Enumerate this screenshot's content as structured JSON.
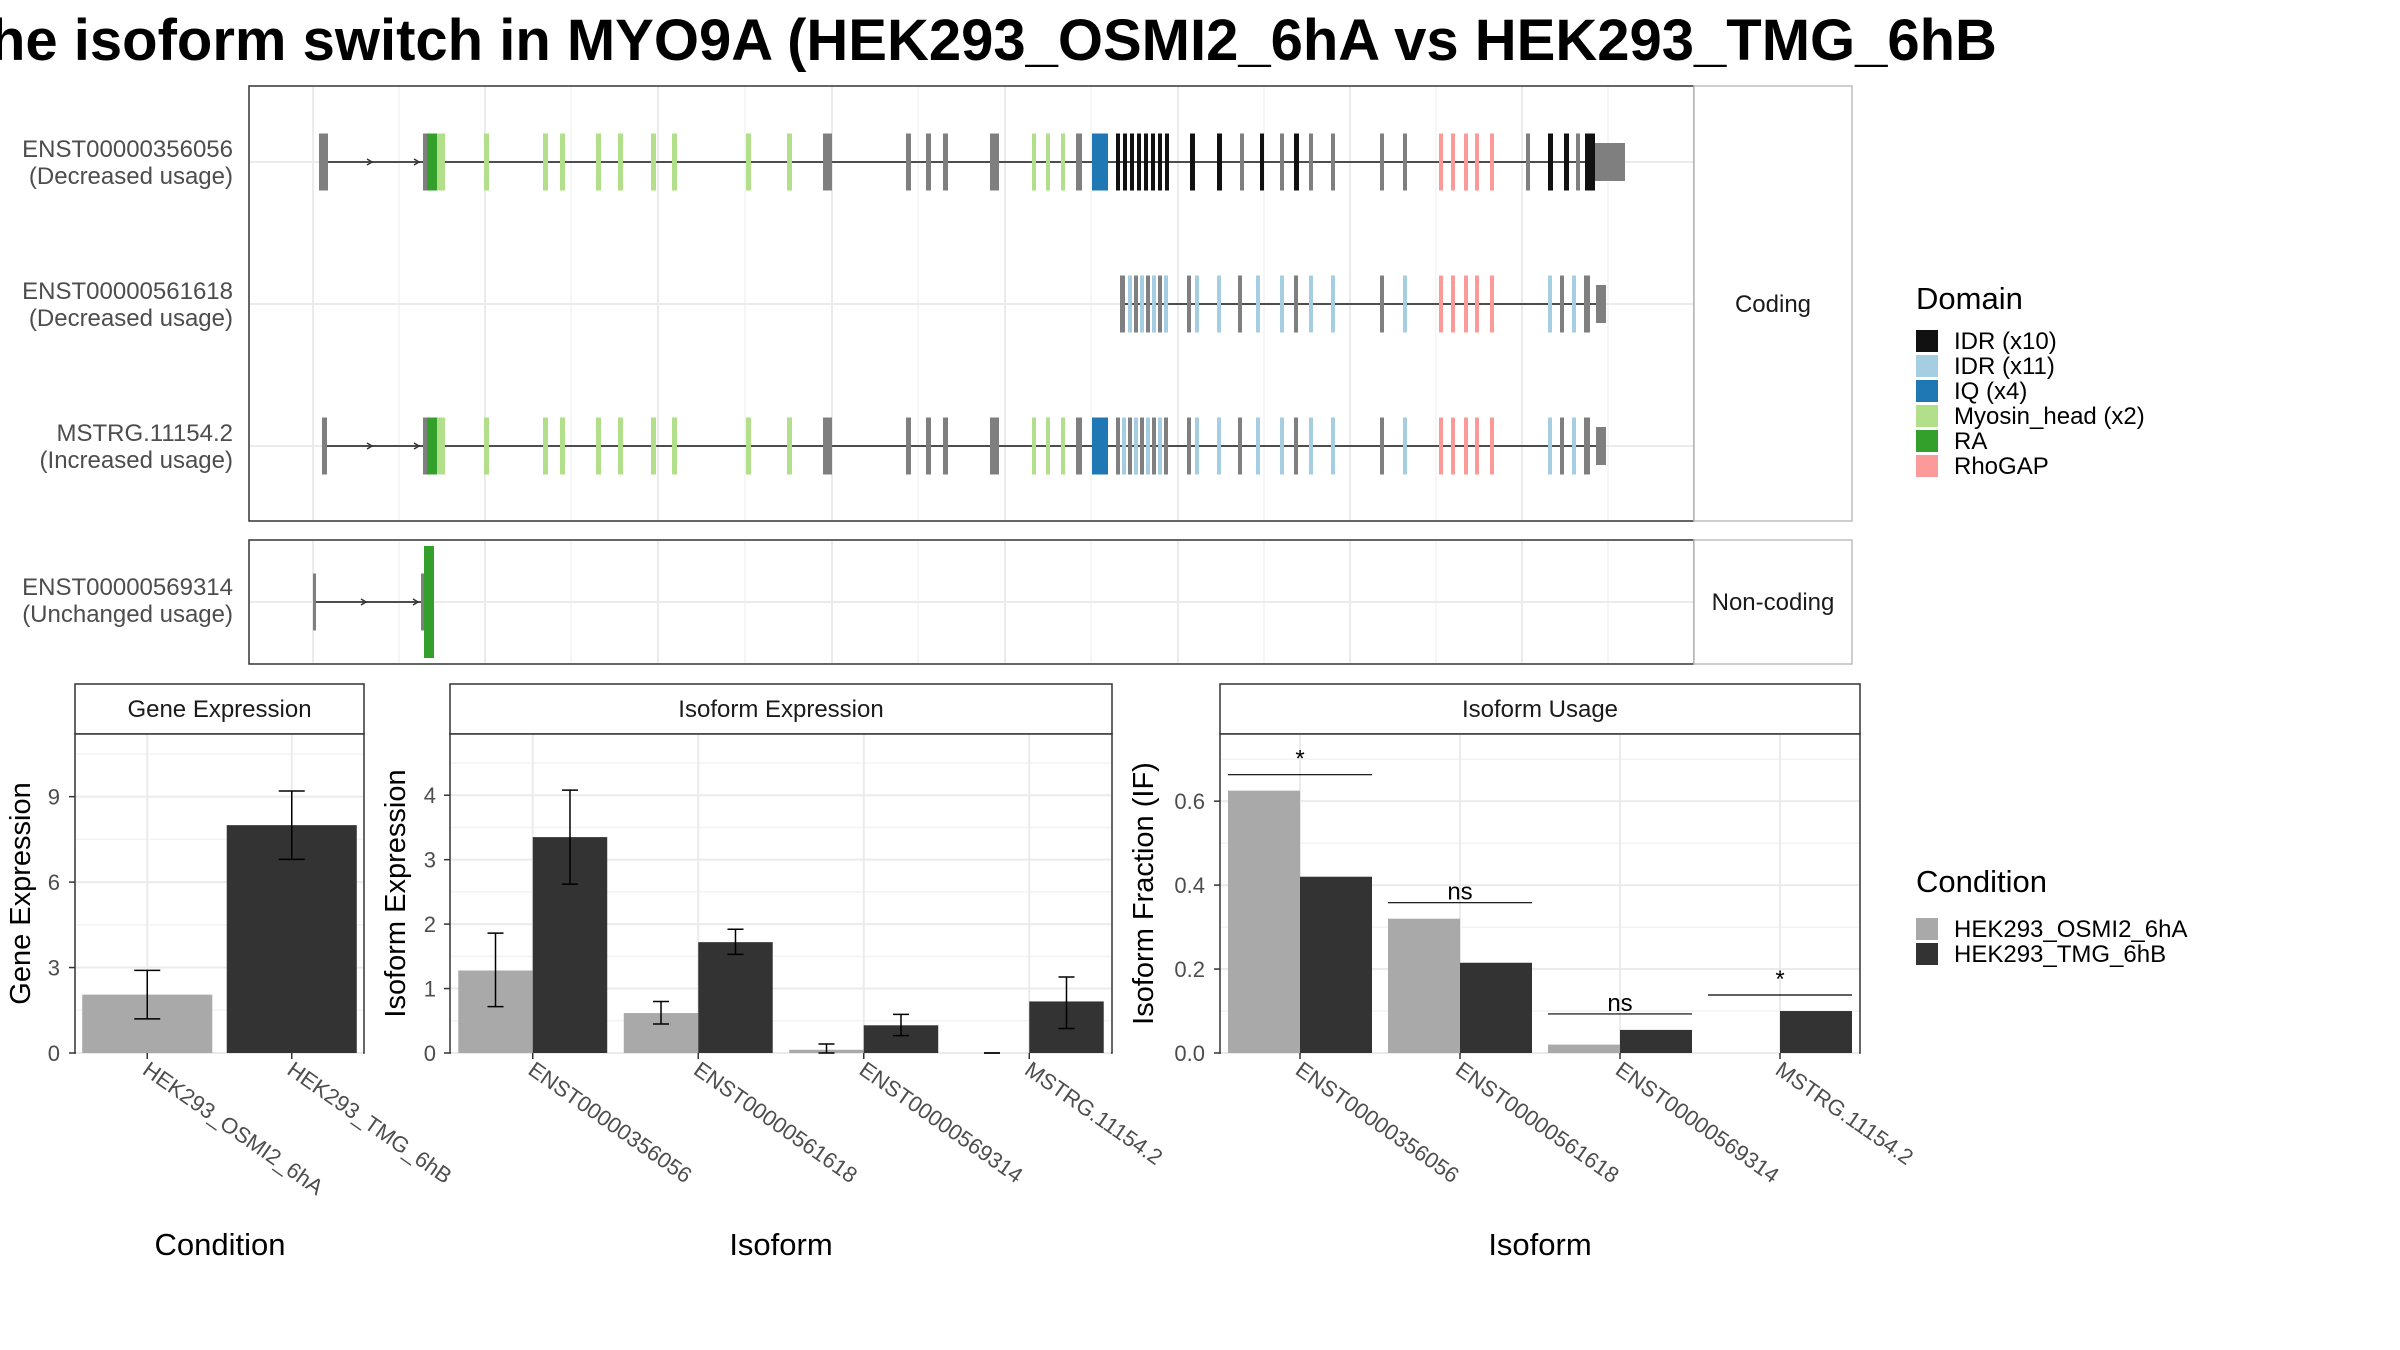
{
  "title": "he isoform switch in MYO9A (HEK293_OSMI2_6hA vs HEK293_TMG_6hB",
  "transcripts": [
    {
      "id": "ENST00000356056",
      "usage": "(Decreased usage)",
      "panel": "coding"
    },
    {
      "id": "ENST00000561618",
      "usage": "(Decreased usage)",
      "panel": "coding"
    },
    {
      "id": "MSTRG.11154.2",
      "usage": "(Increased usage)",
      "panel": "coding"
    },
    {
      "id": "ENST00000569314",
      "usage": "(Unchanged usage)",
      "panel": "noncoding"
    }
  ],
  "strips": {
    "coding": "Coding",
    "noncoding": "Non-coding"
  },
  "domain_legend": {
    "title": "Domain",
    "items": [
      {
        "label": "IDR (x10)",
        "color": "#111111"
      },
      {
        "label": "IDR (x11)",
        "color": "#a6cee3"
      },
      {
        "label": "IQ (x4)",
        "color": "#1f78b4"
      },
      {
        "label": "Myosin_head (x2)",
        "color": "#b2df8a"
      },
      {
        "label": "RA",
        "color": "#33a02c"
      },
      {
        "label": "RhoGAP",
        "color": "#fb9a99"
      }
    ]
  },
  "condition_legend": {
    "title": "Condition",
    "items": [
      {
        "label": "HEK293_OSMI2_6hA",
        "color": "#a9a9a9"
      },
      {
        "label": "HEK293_TMG_6hB",
        "color": "#333333"
      }
    ]
  },
  "chart_data": [
    {
      "type": "bar",
      "panel_title": "Gene Expression",
      "xlabel": "Condition",
      "ylabel": "Gene Expression",
      "categories": [
        "HEK293_OSMI2_6hA",
        "HEK293_TMG_6hB"
      ],
      "values": [
        2.05,
        8.0
      ],
      "errors": [
        [
          1.2,
          2.9
        ],
        [
          6.8,
          9.2
        ]
      ],
      "ylim": [
        0,
        11.2
      ],
      "yticks": [
        0,
        3,
        6,
        9
      ]
    },
    {
      "type": "bar",
      "panel_title": "Isoform Expression",
      "xlabel": "Isoform",
      "ylabel": "Isoform Expression",
      "categories": [
        "ENST00000356056",
        "ENST00000561618",
        "ENST00000569314",
        "MSTRG.11154.2"
      ],
      "series": [
        {
          "name": "HEK293_OSMI2_6hA",
          "values": [
            1.28,
            0.62,
            0.05,
            0.0
          ],
          "errors": [
            [
              0.72,
              1.86
            ],
            [
              0.45,
              0.8
            ],
            [
              0.0,
              0.14
            ],
            [
              0.0,
              0.0
            ]
          ]
        },
        {
          "name": "HEK293_TMG_6hB",
          "values": [
            3.35,
            1.72,
            0.43,
            0.8
          ],
          "errors": [
            [
              2.62,
              4.08
            ],
            [
              1.53,
              1.92
            ],
            [
              0.27,
              0.6
            ],
            [
              0.38,
              1.18
            ]
          ]
        }
      ],
      "ylim": [
        0,
        4.95
      ],
      "yticks": [
        0,
        1,
        2,
        3,
        4
      ]
    },
    {
      "type": "bar",
      "panel_title": "Isoform Usage",
      "xlabel": "Isoform",
      "ylabel": "Isoform Fraction (IF)",
      "categories": [
        "ENST00000356056",
        "ENST00000561618",
        "ENST00000569314",
        "MSTRG.11154.2"
      ],
      "series": [
        {
          "name": "HEK293_OSMI2_6hA",
          "values": [
            0.625,
            0.32,
            0.02,
            0.0
          ]
        },
        {
          "name": "HEK293_TMG_6hB",
          "values": [
            0.42,
            0.215,
            0.055,
            0.1
          ]
        }
      ],
      "significance": [
        "*",
        "ns",
        "ns",
        "*"
      ],
      "ylim": [
        0,
        0.76
      ],
      "yticks": [
        0.0,
        0.2,
        0.4,
        0.6
      ],
      "ytick_labels": [
        "0.0",
        "0.2",
        "0.4",
        "0.6"
      ]
    }
  ]
}
